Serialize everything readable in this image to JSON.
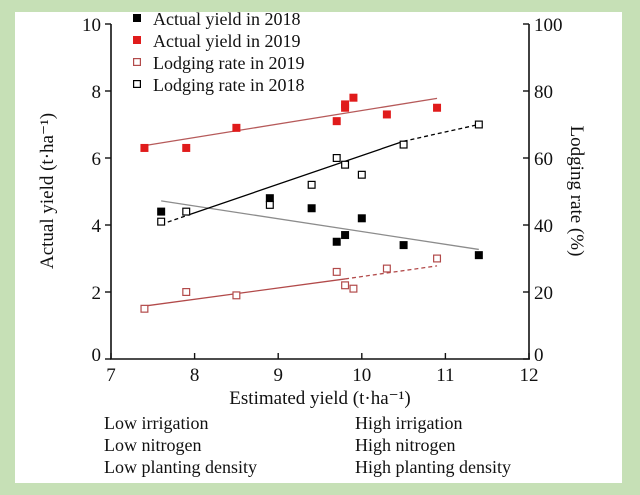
{
  "chart_data": {
    "type": "scatter",
    "title": "",
    "xlabel": "Estimated yield (t·ha⁻¹)",
    "ylabel": "Actual yield (t·ha⁻¹)",
    "y2label": "Lodging rate (%)",
    "xlim": [
      7,
      12
    ],
    "ylim": [
      0,
      10
    ],
    "y2lim": [
      0,
      100
    ],
    "x_ticks": [
      "7",
      "8",
      "9",
      "10",
      "11",
      "12"
    ],
    "y_ticks": [
      "0",
      "2",
      "4",
      "6",
      "8",
      "10"
    ],
    "y2_ticks": [
      "0",
      "20",
      "40",
      "60",
      "80",
      "100"
    ],
    "grid": false,
    "legend_position": "top-left",
    "series": [
      {
        "name": "Actual yield in 2018",
        "axis": "left",
        "marker": "filled-square",
        "color": "#000000",
        "x": [
          7.6,
          8.9,
          9.4,
          9.7,
          9.8,
          10.0,
          10.5,
          11.4
        ],
        "y": [
          4.4,
          4.8,
          4.5,
          3.5,
          3.7,
          4.2,
          3.4,
          3.1
        ],
        "trend": {
          "x": [
            7.6,
            11.4
          ],
          "y": [
            4.72,
            3.27
          ],
          "color": "#8c8c8c",
          "style": "solid"
        }
      },
      {
        "name": "Actual yield in 2019",
        "axis": "left",
        "marker": "filled-square",
        "color": "#e01b1b",
        "x": [
          7.4,
          7.9,
          8.5,
          9.7,
          9.8,
          9.8,
          9.9,
          10.3,
          10.9
        ],
        "y": [
          6.3,
          6.3,
          6.9,
          7.1,
          7.5,
          7.6,
          7.8,
          7.3,
          7.5
        ],
        "trend": {
          "x": [
            7.4,
            10.9
          ],
          "y": [
            6.37,
            7.78
          ],
          "color": "#b65a5a",
          "style": "solid"
        }
      },
      {
        "name": "Lodging rate in 2019",
        "axis": "right",
        "marker": "open-square",
        "color": "#b24a4a",
        "x": [
          7.4,
          7.9,
          8.5,
          9.7,
          9.8,
          9.9,
          10.3,
          10.9
        ],
        "y": [
          15,
          20,
          19,
          26,
          22,
          21,
          27,
          30
        ],
        "trend": {
          "x": [
            7.4,
            9.8,
            10.9
          ],
          "y": [
            15.8,
            23.9,
            27.8
          ],
          "color": "#b24a4a",
          "style": "solid-then-dashed"
        }
      },
      {
        "name": "Lodging rate in 2018",
        "axis": "right",
        "marker": "open-square",
        "color": "#000000",
        "x": [
          7.6,
          7.9,
          8.9,
          9.4,
          9.7,
          9.8,
          10.0,
          10.5,
          11.4
        ],
        "y": [
          41,
          44,
          46,
          52,
          60,
          58,
          55,
          64,
          70
        ],
        "trend": {
          "x": [
            7.6,
            7.95,
            10.5,
            11.4
          ],
          "y": [
            40.2,
            43.2,
            65.0,
            70.0
          ],
          "color": "#000000",
          "style": "dashed-solid-dashed"
        }
      }
    ]
  },
  "conditions": {
    "low": [
      "Low irrigation",
      "Low nitrogen",
      "Low planting density"
    ],
    "high": [
      "High irrigation",
      "High nitrogen",
      "High planting density"
    ]
  },
  "colors": {
    "frame": "#c6e0b6",
    "red_filled": "#e01b1b",
    "red_open": "#b24a4a",
    "gray_trend": "#8c8c8c"
  }
}
